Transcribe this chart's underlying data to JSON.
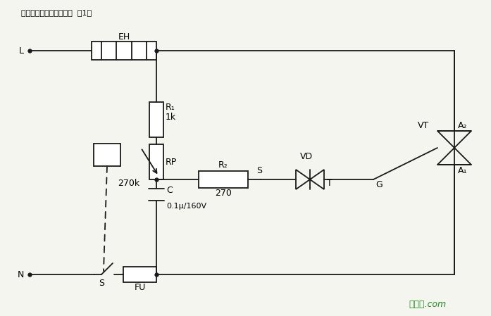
{
  "title": "双向晶闸管无级调压电路  第1张",
  "bg_color": "#f5f5f0",
  "line_color": "#1a1a1a",
  "watermark_text": "接线图.com",
  "watermark_color": "#228B22",
  "components": {
    "EH_label": "EH",
    "R1_label": "R₁",
    "R1_value": "1k",
    "RP_label": "RP",
    "RP_value": "270k",
    "R2_label": "R₂",
    "R2_value": "270",
    "C_label": "C",
    "C_value": "0.1μ/160V",
    "VD_label": "VD",
    "VD_sublabel": "T",
    "VT_label": "VT",
    "A2_label": "A₂",
    "A1_label": "A₁",
    "G_label": "G",
    "S_label_bottom": "S",
    "S_label_mid": "S",
    "FU_label": "FU",
    "L_label": "L",
    "N_label": "N"
  }
}
